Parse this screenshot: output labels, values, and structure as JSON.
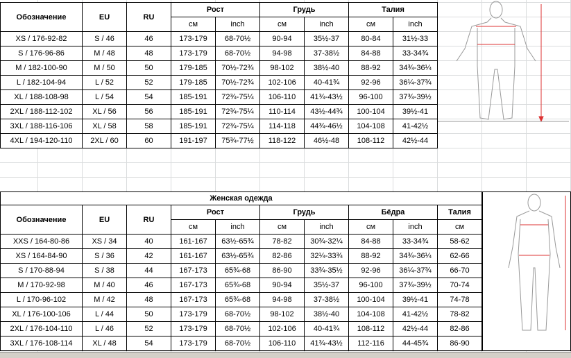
{
  "men": {
    "columns": [
      "Обозначение",
      "EU",
      "RU"
    ],
    "groups": [
      {
        "label": "Рост",
        "units": [
          "см",
          "inch"
        ]
      },
      {
        "label": "Грудь",
        "units": [
          "см",
          "inch"
        ]
      },
      {
        "label": "Талия",
        "units": [
          "см",
          "inch"
        ]
      }
    ],
    "rows": [
      [
        "XS / 176-92-82",
        "S / 46",
        "46",
        "173-179",
        "68-70½",
        "90-94",
        "35½-37",
        "80-84",
        "31½-33"
      ],
      [
        "S / 176-96-86",
        "M / 48",
        "48",
        "173-179",
        "68-70½",
        "94-98",
        "37-38½",
        "84-88",
        "33-34¾"
      ],
      [
        "M / 182-100-90",
        "M / 50",
        "50",
        "179-185",
        "70½-72¾",
        "98-102",
        "38½-40",
        "88-92",
        "34¾-36¼"
      ],
      [
        "L / 182-104-94",
        "L / 52",
        "52",
        "179-185",
        "70½-72¾",
        "102-106",
        "40-41¾",
        "92-96",
        "36¼-37¾"
      ],
      [
        "XL / 188-108-98",
        "L / 54",
        "54",
        "185-191",
        "72¾-75¼",
        "106-110",
        "41¾-43½",
        "96-100",
        "37¾-39½"
      ],
      [
        "2XL / 188-112-102",
        "XL / 56",
        "56",
        "185-191",
        "72¾-75¼",
        "110-114",
        "43½-44¾",
        "100-104",
        "39½-41"
      ],
      [
        "3XL / 188-116-106",
        "XL / 58",
        "58",
        "185-191",
        "72¾-75¼",
        "114-118",
        "44¾-46½",
        "104-108",
        "41-42½"
      ],
      [
        "4XL / 194-120-110",
        "2XL / 60",
        "60",
        "191-197",
        "75¾-77½",
        "118-122",
        "46½-48",
        "108-112",
        "42½-44"
      ]
    ]
  },
  "women": {
    "title": "Женская одежда",
    "columns": [
      "Обозначение",
      "EU",
      "RU"
    ],
    "groups": [
      {
        "label": "Рост",
        "units": [
          "см",
          "inch"
        ]
      },
      {
        "label": "Грудь",
        "units": [
          "см",
          "inch"
        ]
      },
      {
        "label": "Бёдра",
        "units": [
          "см",
          "inch"
        ]
      },
      {
        "label": "Талия",
        "units": [
          "см"
        ]
      }
    ],
    "rows": [
      [
        "XXS / 164-80-86",
        "XS / 34",
        "40",
        "161-167",
        "63½-65¾",
        "78-82",
        "30¾-32¼",
        "84-88",
        "33-34¾",
        "58-62"
      ],
      [
        "XS / 164-84-90",
        "S / 36",
        "42",
        "161-167",
        "63½-65¾",
        "82-86",
        "32¼-33¾",
        "88-92",
        "34¾-36¼",
        "62-66"
      ],
      [
        "S / 170-88-94",
        "S / 38",
        "44",
        "167-173",
        "65¾-68",
        "86-90",
        "33¾-35½",
        "92-96",
        "36¼-37¾",
        "66-70"
      ],
      [
        "M / 170-92-98",
        "M / 40",
        "46",
        "167-173",
        "65¾-68",
        "90-94",
        "35½-37",
        "96-100",
        "37¾-39½",
        "70-74"
      ],
      [
        "L / 170-96-102",
        "M / 42",
        "48",
        "167-173",
        "65¾-68",
        "94-98",
        "37-38½",
        "100-104",
        "39½-41",
        "74-78"
      ],
      [
        "XL / 176-100-106",
        "L / 44",
        "50",
        "173-179",
        "68-70½",
        "98-102",
        "38½-40",
        "104-108",
        "41-42½",
        "78-82"
      ],
      [
        "2XL / 176-104-110",
        "L / 46",
        "52",
        "173-179",
        "68-70½",
        "102-106",
        "40-41¾",
        "108-112",
        "42½-44",
        "82-86"
      ],
      [
        "3XL / 176-108-114",
        "XL / 48",
        "54",
        "173-179",
        "68-70½",
        "106-110",
        "41¾-43½",
        "112-116",
        "44-45¾",
        "86-90"
      ]
    ]
  }
}
